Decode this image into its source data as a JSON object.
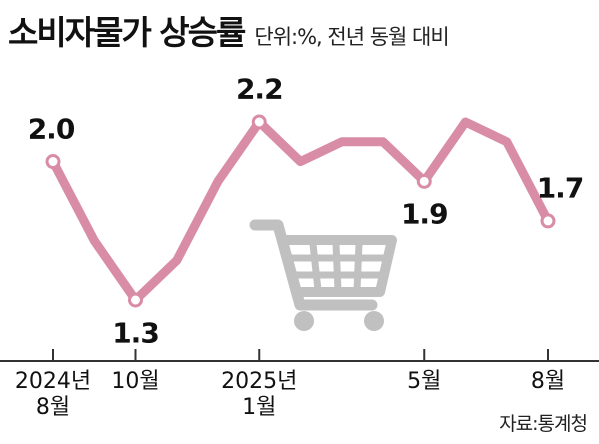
{
  "header": {
    "title": "소비자물가 상승률",
    "subtitle": "단위:%, 전년 동월 대비"
  },
  "source": "자료:통계청",
  "colors": {
    "line": "#d98ca6",
    "marker_fill": "#ffffff",
    "cart": "#c0c0c0",
    "axis": "#333333",
    "text": "#111111"
  },
  "icons": [
    "shopping-cart-icon"
  ],
  "chart_data": {
    "type": "line",
    "title": "소비자물가 상승률",
    "subtitle": "단위:%, 전년 동월 대비",
    "xlabel": "",
    "ylabel": "",
    "x": [
      "2024-08",
      "2024-09",
      "2024-10",
      "2024-11",
      "2024-12",
      "2025-01",
      "2025-02",
      "2025-03",
      "2025-04",
      "2025-05",
      "2025-06",
      "2025-07",
      "2025-08"
    ],
    "series": [
      {
        "values": [
          2.0,
          1.6,
          1.3,
          1.5,
          1.9,
          2.2,
          2.0,
          2.1,
          2.1,
          1.9,
          2.2,
          2.1,
          1.7
        ]
      }
    ],
    "ylim": [
      0.9,
      2.5
    ],
    "grid": false,
    "x_tick_labels": [
      {
        "index": 0,
        "lines": [
          "2024년",
          "8월"
        ]
      },
      {
        "index": 2,
        "lines": [
          "10월"
        ]
      },
      {
        "index": 5,
        "lines": [
          "2025년",
          "1월"
        ]
      },
      {
        "index": 9,
        "lines": [
          "5월"
        ]
      },
      {
        "index": 12,
        "lines": [
          "8월"
        ]
      }
    ],
    "data_labels": [
      {
        "index": 0,
        "text": "2.0",
        "position": "above"
      },
      {
        "index": 2,
        "text": "1.3",
        "position": "below"
      },
      {
        "index": 5,
        "text": "2.2",
        "position": "above"
      },
      {
        "index": 9,
        "text": "1.9",
        "position": "below"
      },
      {
        "index": 12,
        "text": "1.7",
        "position": "above"
      }
    ]
  }
}
